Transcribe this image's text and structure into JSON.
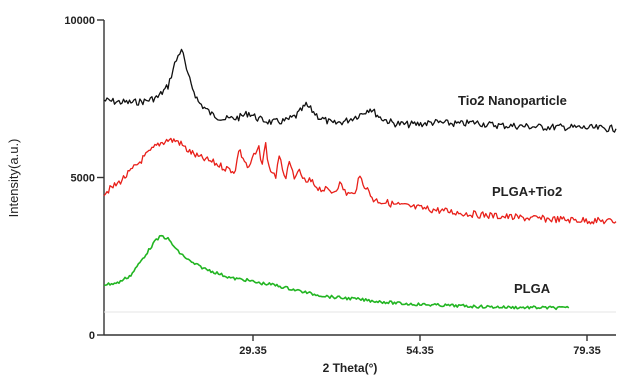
{
  "chart_data": {
    "type": "line",
    "title": "",
    "xlabel": "2 Theta(°)",
    "ylabel": "Intensity(a.u.)",
    "xlim": [
      10,
      86
    ],
    "ylim": [
      0,
      10000
    ],
    "x_ticks": [
      29.35,
      54.35,
      79.35
    ],
    "x_tick_labels": [
      "29.35",
      "54.35",
      "79.35"
    ],
    "y_ticks": [
      0,
      5000,
      10000
    ],
    "y_tick_labels": [
      "0",
      "5000",
      "10000"
    ],
    "grid": false,
    "legend": "none",
    "series": [
      {
        "name": "Tio2 Nanoparticle",
        "color": "#111111",
        "x": [
          10,
          12,
          14,
          16,
          18,
          19.5,
          20.5,
          21.5,
          22.5,
          24,
          26,
          28,
          30,
          31.5,
          33,
          35,
          37,
          38.5,
          40,
          42,
          44,
          46,
          48,
          49.5,
          51,
          53,
          55,
          57,
          59,
          61,
          63,
          65,
          67,
          69,
          72,
          75,
          78,
          81,
          84,
          86
        ],
        "y": [
          7450,
          7400,
          7380,
          7420,
          7550,
          7900,
          8600,
          9100,
          8200,
          7400,
          7000,
          6850,
          6900,
          7050,
          6850,
          6750,
          6800,
          6950,
          7300,
          6900,
          6700,
          6800,
          7000,
          7200,
          6900,
          6720,
          6680,
          6700,
          6750,
          6720,
          6700,
          6750,
          6680,
          6650,
          6630,
          6600,
          6600,
          6580,
          6560,
          6550
        ]
      },
      {
        "name": "PLGA+Tio2",
        "color": "#e8201a",
        "x": [
          10,
          12,
          14,
          16,
          18,
          19.5,
          21,
          22.5,
          24,
          26,
          28,
          29.5,
          30,
          31.5,
          32,
          33,
          33.5,
          34,
          34.5,
          35.5,
          36,
          37,
          37.5,
          38.5,
          39,
          40,
          40.5,
          42,
          44,
          45,
          46,
          47,
          48,
          50,
          53,
          56,
          60,
          64,
          68,
          72,
          76,
          80,
          84,
          86
        ],
        "y": [
          4500,
          4800,
          5200,
          5650,
          6050,
          6200,
          6150,
          5850,
          5650,
          5500,
          5300,
          5200,
          5900,
          5250,
          5600,
          5900,
          5450,
          6050,
          5300,
          5050,
          5600,
          5000,
          5400,
          4950,
          5200,
          4800,
          4900,
          4650,
          4550,
          4800,
          4500,
          4450,
          5000,
          4300,
          4150,
          4050,
          3950,
          3850,
          3780,
          3720,
          3680,
          3650,
          3620,
          3600
        ]
      },
      {
        "name": "PLGA",
        "color": "#22b522",
        "x": [
          10,
          12,
          14,
          16,
          17.5,
          18.5,
          19.5,
          21,
          23,
          25,
          27,
          29,
          31,
          33,
          35,
          37,
          39,
          41,
          44,
          47,
          50,
          54,
          58,
          62,
          66,
          70,
          74,
          78,
          79
        ],
        "y": [
          1600,
          1650,
          1900,
          2500,
          2950,
          3150,
          3050,
          2650,
          2300,
          2100,
          1950,
          1800,
          1750,
          1650,
          1600,
          1500,
          1400,
          1300,
          1200,
          1150,
          1080,
          1000,
          960,
          930,
          900,
          880,
          870,
          860,
          860
        ]
      }
    ]
  }
}
